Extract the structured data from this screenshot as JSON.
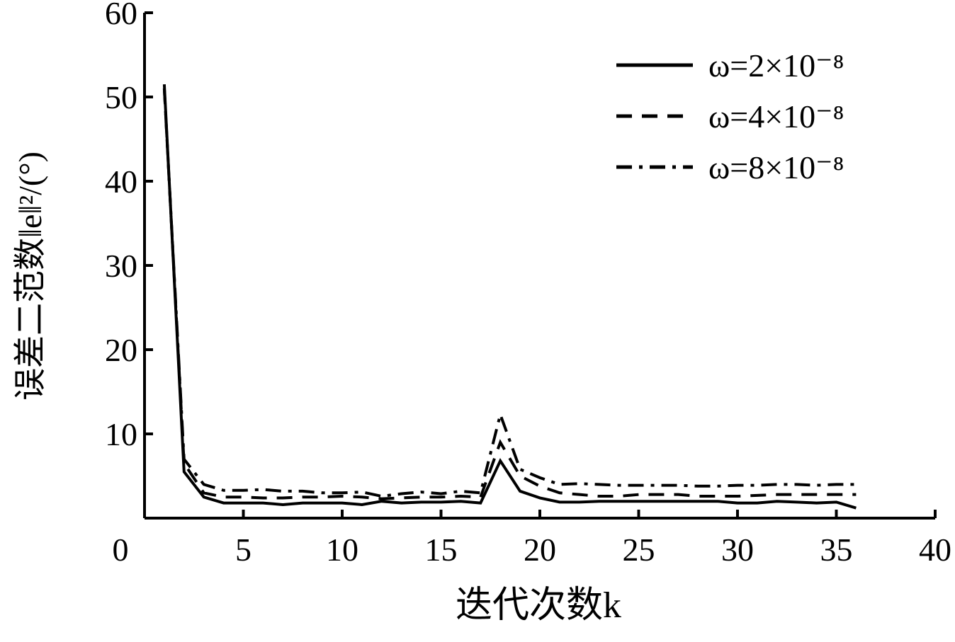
{
  "chart_data": {
    "type": "line",
    "x_label": "迭代次数k",
    "y_label": "误差二范数‖e‖²/(°)",
    "x": [
      1,
      2,
      3,
      4,
      5,
      6,
      7,
      8,
      9,
      10,
      11,
      12,
      13,
      14,
      15,
      16,
      17,
      18,
      19,
      20,
      21,
      22,
      23,
      24,
      25,
      26,
      27,
      28,
      29,
      30,
      31,
      32,
      33,
      34,
      35,
      36
    ],
    "series": [
      {
        "name": "ω=2×10⁻⁸",
        "color": "#000000",
        "dash": "solid",
        "values": [
          51.5,
          5.5,
          2.5,
          1.8,
          1.8,
          1.8,
          1.6,
          1.8,
          1.8,
          1.8,
          1.6,
          2.0,
          1.8,
          1.9,
          1.9,
          2.0,
          1.8,
          6.8,
          3.2,
          2.4,
          1.9,
          1.9,
          2.0,
          2.0,
          2.0,
          2.0,
          2.0,
          2.0,
          2.0,
          1.8,
          1.8,
          2.0,
          1.9,
          1.8,
          1.9,
          1.2
        ]
      },
      {
        "name": "ω=4×10⁻⁸",
        "color": "#000000",
        "dash": "dashed",
        "values": [
          51.0,
          6.5,
          3.0,
          2.5,
          2.5,
          2.4,
          2.4,
          2.5,
          2.5,
          2.6,
          2.5,
          2.3,
          2.4,
          2.5,
          2.5,
          2.6,
          2.5,
          9.0,
          5.0,
          3.8,
          3.0,
          2.8,
          2.6,
          2.6,
          2.8,
          2.8,
          2.8,
          2.6,
          2.6,
          2.6,
          2.7,
          2.8,
          2.8,
          2.8,
          2.8,
          2.8
        ]
      },
      {
        "name": "ω=8×10⁻⁸",
        "color": "#000000",
        "dash": "dashdot",
        "values": [
          51.0,
          7.0,
          4.0,
          3.3,
          3.3,
          3.4,
          3.2,
          3.2,
          3.0,
          3.0,
          3.1,
          2.6,
          2.9,
          3.1,
          2.9,
          3.2,
          3.0,
          12.3,
          5.8,
          4.8,
          4.0,
          4.1,
          4.0,
          3.9,
          3.9,
          3.9,
          3.9,
          3.8,
          3.8,
          3.9,
          3.9,
          4.0,
          4.0,
          3.9,
          4.0,
          4.0
        ]
      }
    ],
    "xlim": [
      0,
      40
    ],
    "xticks": [
      0,
      5,
      10,
      15,
      20,
      25,
      30,
      35,
      40
    ],
    "ylim": [
      0,
      60
    ],
    "yticks": [
      10,
      20,
      30,
      40,
      50,
      60
    ],
    "legend": "upper right",
    "grid": false
  }
}
